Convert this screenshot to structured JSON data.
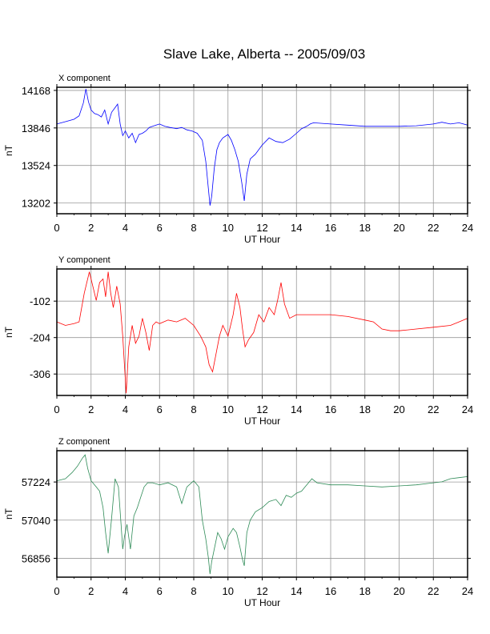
{
  "page_title": "Slave Lake, Alberta -- 2005/09/03",
  "chart_data": [
    {
      "type": "line",
      "title": "X component",
      "xlabel": "UT Hour",
      "ylabel": "nT",
      "xlim": [
        0,
        24
      ],
      "ylim": [
        13110,
        14195
      ],
      "xticks": [
        0,
        2,
        4,
        6,
        8,
        10,
        12,
        14,
        16,
        18,
        20,
        22,
        24
      ],
      "yticks": [
        13202,
        13524,
        13846,
        14168
      ],
      "grid": true,
      "color": "#0000ff",
      "series": [
        {
          "x": [
            0,
            0.5,
            1.0,
            1.3,
            1.55,
            1.7,
            1.85,
            2.0,
            2.2,
            2.4,
            2.6,
            2.8,
            3.0,
            3.2,
            3.4,
            3.55,
            3.7,
            3.85,
            4.0,
            4.2,
            4.4,
            4.6,
            4.8,
            5.0,
            5.2,
            5.4,
            5.6,
            5.8,
            6.0,
            6.3,
            6.6,
            7.0,
            7.3,
            7.6,
            7.9,
            8.2,
            8.5,
            8.7,
            8.85,
            8.95,
            9.05,
            9.2,
            9.35,
            9.5,
            9.7,
            10.0,
            10.2,
            10.4,
            10.6,
            10.8,
            10.95,
            11.1,
            11.3,
            11.6,
            12.0,
            12.4,
            12.8,
            13.2,
            13.6,
            14.0,
            14.3,
            14.6,
            14.8,
            15.0,
            16.0,
            17.0,
            18.0,
            19.0,
            20.0,
            21.0,
            22.0,
            22.5,
            23.0,
            23.5,
            24.0
          ],
          "y": [
            13880,
            13900,
            13920,
            13950,
            14060,
            14180,
            14070,
            14000,
            13970,
            13960,
            13940,
            14000,
            13880,
            13980,
            14020,
            14050,
            13880,
            13780,
            13820,
            13760,
            13800,
            13720,
            13790,
            13800,
            13820,
            13850,
            13860,
            13870,
            13880,
            13860,
            13850,
            13840,
            13850,
            13830,
            13820,
            13800,
            13740,
            13560,
            13330,
            13180,
            13260,
            13500,
            13660,
            13720,
            13760,
            13790,
            13740,
            13660,
            13560,
            13380,
            13220,
            13450,
            13580,
            13620,
            13700,
            13760,
            13730,
            13720,
            13750,
            13800,
            13840,
            13860,
            13880,
            13890,
            13880,
            13870,
            13860,
            13860,
            13860,
            13865,
            13880,
            13895,
            13880,
            13890,
            13870
          ]
        }
      ]
    },
    {
      "type": "line",
      "title": "Y component",
      "xlabel": "UT Hour",
      "ylabel": "nT",
      "xlim": [
        0,
        24
      ],
      "ylim": [
        -366,
        -12
      ],
      "xticks": [
        0,
        2,
        4,
        6,
        8,
        10,
        12,
        14,
        16,
        18,
        20,
        22,
        24
      ],
      "yticks": [
        -102,
        -204,
        -306
      ],
      "grid": true,
      "color": "#ff0000",
      "series": [
        {
          "x": [
            0,
            0.5,
            1.0,
            1.3,
            1.6,
            1.9,
            2.1,
            2.3,
            2.5,
            2.7,
            2.85,
            3.0,
            3.15,
            3.3,
            3.5,
            3.7,
            3.85,
            3.95,
            4.05,
            4.2,
            4.4,
            4.6,
            4.8,
            5.0,
            5.2,
            5.4,
            5.6,
            5.8,
            6.0,
            6.5,
            7.0,
            7.5,
            8.0,
            8.4,
            8.7,
            8.9,
            9.1,
            9.3,
            9.5,
            9.7,
            10.0,
            10.3,
            10.5,
            10.7,
            10.85,
            11.0,
            11.2,
            11.5,
            11.8,
            12.1,
            12.4,
            12.7,
            12.9,
            13.1,
            13.3,
            13.6,
            14.0,
            14.5,
            15.0,
            16.0,
            17.0,
            18.0,
            18.5,
            19.0,
            19.5,
            20.0,
            21.0,
            22.0,
            23.0,
            23.5,
            24.0
          ],
          "y": [
            -160,
            -170,
            -165,
            -160,
            -80,
            -20,
            -60,
            -100,
            -50,
            -40,
            -90,
            -20,
            -80,
            -120,
            -60,
            -110,
            -200,
            -280,
            -360,
            -230,
            -170,
            -220,
            -200,
            -150,
            -190,
            -240,
            -170,
            -160,
            -165,
            -155,
            -160,
            -150,
            -170,
            -200,
            -230,
            -280,
            -300,
            -250,
            -200,
            -170,
            -200,
            -140,
            -80,
            -120,
            -180,
            -230,
            -210,
            -190,
            -140,
            -160,
            -120,
            -140,
            -100,
            -50,
            -110,
            -150,
            -140,
            -140,
            -140,
            -140,
            -145,
            -155,
            -160,
            -180,
            -185,
            -185,
            -180,
            -175,
            -170,
            -160,
            -150
          ]
        }
      ]
    },
    {
      "type": "line",
      "title": "Z component",
      "xlabel": "UT Hour",
      "ylabel": "nT",
      "xlim": [
        0,
        24
      ],
      "ylim": [
        56765,
        57375
      ],
      "xticks": [
        0,
        2,
        4,
        6,
        8,
        10,
        12,
        14,
        16,
        18,
        20,
        22,
        24
      ],
      "yticks": [
        56856,
        57040,
        57224
      ],
      "grid": true,
      "color": "#2e8b57",
      "series": [
        {
          "x": [
            0,
            0.5,
            0.9,
            1.2,
            1.5,
            1.65,
            1.8,
            2.0,
            2.3,
            2.5,
            2.7,
            2.85,
            3.0,
            3.2,
            3.4,
            3.6,
            3.75,
            3.85,
            3.95,
            4.1,
            4.3,
            4.5,
            4.7,
            4.9,
            5.1,
            5.3,
            5.6,
            6.0,
            6.5,
            7.0,
            7.3,
            7.6,
            8.0,
            8.3,
            8.5,
            8.7,
            8.85,
            8.95,
            9.05,
            9.2,
            9.4,
            9.6,
            9.8,
            10.0,
            10.3,
            10.5,
            10.7,
            10.85,
            10.95,
            11.1,
            11.3,
            11.6,
            12.0,
            12.4,
            12.8,
            13.1,
            13.4,
            13.7,
            14.0,
            14.3,
            14.6,
            14.9,
            15.2,
            16.0,
            17.0,
            18.0,
            19.0,
            20.0,
            21.0,
            22.0,
            22.5,
            23.0,
            23.5,
            24.0
          ],
          "y": [
            57230,
            57240,
            57270,
            57300,
            57340,
            57355,
            57290,
            57230,
            57200,
            57180,
            57100,
            56980,
            56880,
            57050,
            57240,
            57200,
            57020,
            56900,
            56960,
            57020,
            56900,
            57060,
            57100,
            57150,
            57200,
            57220,
            57220,
            57210,
            57220,
            57200,
            57120,
            57200,
            57230,
            57200,
            57040,
            56950,
            56860,
            56780,
            56840,
            56900,
            56980,
            56950,
            56900,
            56960,
            57000,
            56980,
            56910,
            56850,
            56820,
            56980,
            57040,
            57080,
            57100,
            57130,
            57140,
            57110,
            57160,
            57150,
            57170,
            57180,
            57210,
            57240,
            57220,
            57210,
            57210,
            57205,
            57200,
            57205,
            57210,
            57220,
            57225,
            57240,
            57245,
            57250
          ]
        }
      ]
    }
  ]
}
